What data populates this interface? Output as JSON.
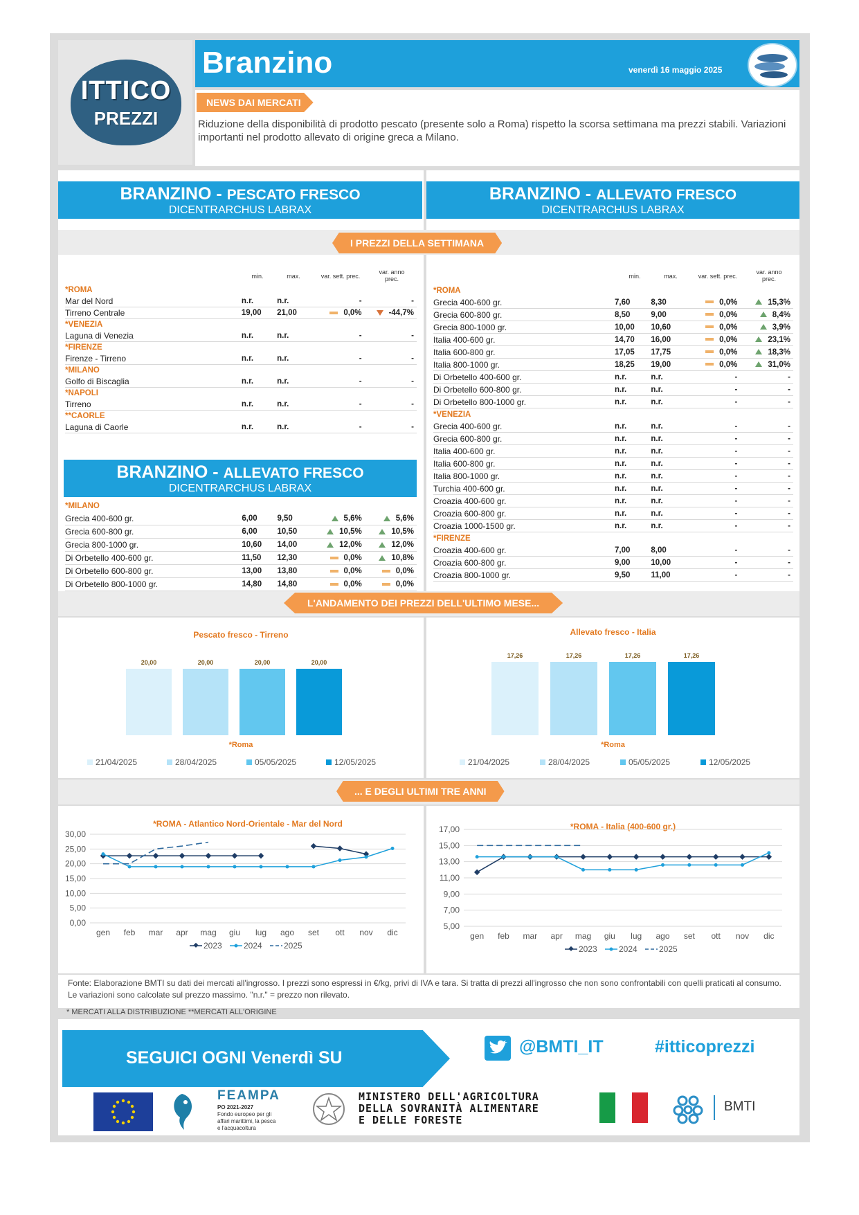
{
  "header": {
    "title": "Branzino",
    "date": "venerdì 16 maggio 2025",
    "logo_line1": "ITTICO",
    "logo_line2": "PREZZI"
  },
  "news": {
    "tag": "NEWS DAI MERCATI",
    "text": "Riduzione della disponibilità di prodotto pescato (presente solo a Roma) rispetto la scorsa settimana ma prezzi stabili. Variazioni importanti nel prodotto allevato di origine greca a Milano."
  },
  "sections": {
    "left_title": "BRANZINO",
    "left_sub": "PESCATO FRESCO",
    "left_latin": "DICENTRARCHUS LABRAX",
    "right_title": "BRANZINO",
    "right_sub": "ALLEVATO FRESCO",
    "right_latin": "DICENTRARCHUS LABRAX",
    "left2_title": "BRANZINO",
    "left2_sub": "ALLEVATO FRESCO",
    "left2_latin": "DICENTRARCHUS LABRAX",
    "prices_tag": "I PREZZI DELLA SETTIMANA",
    "month_tag": "L'ANDAMENTO DEI PREZZI DELL'ULTIMO MESE...",
    "years_tag": "... E DEGLI ULTIMI TRE ANNI"
  },
  "columns": {
    "min": "min.",
    "max": "max.",
    "var_sett": "var. sett. prec.",
    "var_anno_1": "var. anno",
    "var_anno_2": "prec."
  },
  "left_table": [
    {
      "m": "*ROMA"
    },
    {
      "n": "Mar del Nord",
      "min": "n.r.",
      "max": "n.r.",
      "s": "-",
      "a": "-"
    },
    {
      "n": "Tirreno Centrale",
      "min": "19,00",
      "max": "21,00",
      "s": "0,0%",
      "st": "eq",
      "a": "-44,7%",
      "at": "dn"
    },
    {
      "m": "*VENEZIA"
    },
    {
      "n": "Laguna di Venezia",
      "min": "n.r.",
      "max": "n.r.",
      "s": "-",
      "a": "-"
    },
    {
      "m": "*FIRENZE"
    },
    {
      "n": "Firenze - Tirreno",
      "min": "n.r.",
      "max": "n.r.",
      "s": "-",
      "a": "-"
    },
    {
      "m": "*MILANO"
    },
    {
      "n": "Golfo di Biscaglia",
      "min": "n.r.",
      "max": "n.r.",
      "s": "-",
      "a": "-"
    },
    {
      "m": "*NAPOLI"
    },
    {
      "n": "Tirreno",
      "min": "n.r.",
      "max": "n.r.",
      "s": "-",
      "a": "-"
    },
    {
      "m": "**CAORLE"
    },
    {
      "n": "Laguna di Caorle",
      "min": "n.r.",
      "max": "n.r.",
      "s": "-",
      "a": "-"
    }
  ],
  "left2_table": [
    {
      "m": "*MILANO"
    },
    {
      "n": "Grecia 400-600 gr.",
      "min": "6,00",
      "max": "9,50",
      "s": "5,6%",
      "st": "up",
      "a": "5,6%",
      "at": "up"
    },
    {
      "n": "Grecia 600-800 gr.",
      "min": "6,00",
      "max": "10,50",
      "s": "10,5%",
      "st": "up",
      "a": "10,5%",
      "at": "up"
    },
    {
      "n": "Grecia 800-1000 gr.",
      "min": "10,60",
      "max": "14,00",
      "s": "12,0%",
      "st": "up",
      "a": "12,0%",
      "at": "up"
    },
    {
      "n": "Di Orbetello 400-600 gr.",
      "min": "11,50",
      "max": "12,30",
      "s": "0,0%",
      "st": "eq",
      "a": "10,8%",
      "at": "up"
    },
    {
      "n": "Di Orbetello 600-800 gr.",
      "min": "13,00",
      "max": "13,80",
      "s": "0,0%",
      "st": "eq",
      "a": "0,0%",
      "at": "eq"
    },
    {
      "n": "Di Orbetello 800-1000 gr.",
      "min": "14,80",
      "max": "14,80",
      "s": "0,0%",
      "st": "eq",
      "a": "0,0%",
      "at": "eq"
    }
  ],
  "right_table": [
    {
      "m": "*ROMA"
    },
    {
      "n": "Grecia 400-600 gr.",
      "min": "7,60",
      "max": "8,30",
      "s": "0,0%",
      "st": "eq",
      "a": "15,3%",
      "at": "up"
    },
    {
      "n": "Grecia 600-800 gr.",
      "min": "8,50",
      "max": "9,00",
      "s": "0,0%",
      "st": "eq",
      "a": "8,4%",
      "at": "up"
    },
    {
      "n": "Grecia 800-1000 gr.",
      "min": "10,00",
      "max": "10,60",
      "s": "0,0%",
      "st": "eq",
      "a": "3,9%",
      "at": "up"
    },
    {
      "n": "Italia 400-600 gr.",
      "min": "14,70",
      "max": "16,00",
      "s": "0,0%",
      "st": "eq",
      "a": "23,1%",
      "at": "up"
    },
    {
      "n": "Italia 600-800 gr.",
      "min": "17,05",
      "max": "17,75",
      "s": "0,0%",
      "st": "eq",
      "a": "18,3%",
      "at": "up"
    },
    {
      "n": "Italia 800-1000 gr.",
      "min": "18,25",
      "max": "19,00",
      "s": "0,0%",
      "st": "eq",
      "a": "31,0%",
      "at": "up"
    },
    {
      "n": "Di Orbetello 400-600 gr.",
      "min": "n.r.",
      "max": "n.r.",
      "s": "-",
      "a": "-"
    },
    {
      "n": "Di Orbetello 600-800 gr.",
      "min": "n.r.",
      "max": "n.r.",
      "s": "-",
      "a": "-"
    },
    {
      "n": "Di Orbetello 800-1000 gr.",
      "min": "n.r.",
      "max": "n.r.",
      "s": "-",
      "a": "-"
    },
    {
      "m": "*VENEZIA"
    },
    {
      "n": "Grecia 400-600 gr.",
      "min": "n.r.",
      "max": "n.r.",
      "s": "-",
      "a": "-"
    },
    {
      "n": "Grecia 600-800 gr.",
      "min": "n.r.",
      "max": "n.r.",
      "s": "-",
      "a": "-"
    },
    {
      "n": "Italia 400-600 gr.",
      "min": "n.r.",
      "max": "n.r.",
      "s": "-",
      "a": "-"
    },
    {
      "n": "Italia 600-800 gr.",
      "min": "n.r.",
      "max": "n.r.",
      "s": "-",
      "a": "-"
    },
    {
      "n": "Italia 800-1000 gr.",
      "min": "n.r.",
      "max": "n.r.",
      "s": "-",
      "a": "-"
    },
    {
      "n": "Turchia 400-600 gr.",
      "min": "n.r.",
      "max": "n.r.",
      "s": "-",
      "a": "-"
    },
    {
      "n": "Croazia 400-600 gr.",
      "min": "n.r.",
      "max": "n.r.",
      "s": "-",
      "a": "-"
    },
    {
      "n": "Croazia 600-800 gr.",
      "min": "n.r.",
      "max": "n.r.",
      "s": "-",
      "a": "-"
    },
    {
      "n": "Croazia 1000-1500 gr.",
      "min": "n.r.",
      "max": "n.r.",
      "s": "-",
      "a": "-"
    },
    {
      "m": "*FIRENZE"
    },
    {
      "n": "Croazia 400-600 gr.",
      "min": "7,00",
      "max": "8,00",
      "s": "-",
      "a": "-"
    },
    {
      "n": "Croazia 600-800 gr.",
      "min": "9,00",
      "max": "10,00",
      "s": "-",
      "a": "-"
    },
    {
      "n": "Croazia 800-1000 gr.",
      "min": "9,50",
      "max": "11,00",
      "s": "-",
      "a": "-"
    }
  ],
  "chart_data": [
    {
      "type": "bar",
      "title": "Pescato fresco - Tirreno",
      "xlabel": "*Roma",
      "categories": [
        "21/04/2025",
        "28/04/2025",
        "05/05/2025",
        "12/05/2025"
      ],
      "values": [
        20,
        20,
        20,
        20
      ],
      "labels": [
        "20,00",
        "20,00",
        "20,00",
        "20,00"
      ],
      "colors": [
        "#dbf1fb",
        "#b5e3f8",
        "#62c7ef",
        "#099ad9"
      ],
      "legend": "bottom"
    },
    {
      "type": "bar",
      "title": "Allevato fresco - Italia",
      "xlabel": "*Roma",
      "categories": [
        "21/04/2025",
        "28/04/2025",
        "05/05/2025",
        "12/05/2025"
      ],
      "values": [
        17.26,
        17.26,
        17.26,
        17.26
      ],
      "labels": [
        "17,26",
        "17,26",
        "17,26",
        "17,26"
      ],
      "colors": [
        "#dbf1fb",
        "#b5e3f8",
        "#62c7ef",
        "#099ad9"
      ],
      "legend": "bottom"
    },
    {
      "type": "line",
      "title": "*ROMA - Atlantico Nord-Orientale - Mar del Nord",
      "x": [
        "gen",
        "feb",
        "mar",
        "apr",
        "mag",
        "giu",
        "lug",
        "ago",
        "set",
        "ott",
        "nov",
        "dic"
      ],
      "ylim": [
        0,
        30
      ],
      "yticks": [
        "0,00",
        "5,00",
        "10,00",
        "15,00",
        "20,00",
        "25,00",
        "30,00"
      ],
      "series": [
        {
          "name": "2023",
          "values": [
            22.7,
            22.7,
            22.7,
            22.7,
            22.7,
            22.7,
            22.7,
            null,
            26,
            25.2,
            23.3,
            null
          ],
          "color": "#1f3d66"
        },
        {
          "name": "2024",
          "values": [
            23.3,
            19,
            19,
            19,
            19,
            19,
            19,
            19,
            19,
            21.2,
            22.3,
            25.2
          ],
          "color": "#1ea0db"
        },
        {
          "name": "2025",
          "values": [
            20,
            20,
            25,
            26,
            27.3,
            null,
            null,
            null,
            null,
            null,
            null,
            null
          ],
          "color": "#2f6a9e"
        }
      ]
    },
    {
      "type": "line",
      "title": "*ROMA - Italia (400-600 gr.)",
      "x": [
        "gen",
        "feb",
        "mar",
        "apr",
        "mag",
        "giu",
        "lug",
        "ago",
        "set",
        "ott",
        "nov",
        "dic"
      ],
      "ylim": [
        5,
        17
      ],
      "yticks": [
        "5,00",
        "7,00",
        "9,00",
        "11,00",
        "13,00",
        "15,00",
        "17,00"
      ],
      "series": [
        {
          "name": "2023",
          "values": [
            11.7,
            13.6,
            13.6,
            13.6,
            13.6,
            13.6,
            13.6,
            13.6,
            13.6,
            13.6,
            13.6,
            13.6
          ],
          "color": "#1f3d66"
        },
        {
          "name": "2024",
          "values": [
            13.6,
            13.6,
            13.6,
            13.6,
            12,
            12,
            12,
            12.6,
            12.6,
            12.6,
            12.6,
            14.1
          ],
          "color": "#1ea0db"
        },
        {
          "name": "2025",
          "values": [
            15,
            15,
            15,
            15,
            15,
            null,
            null,
            null,
            null,
            null,
            null,
            null
          ],
          "color": "#2f6a9e"
        }
      ]
    }
  ],
  "footer": {
    "source": "Fonte: Elaborazione BMTI su dati dei mercati all'ingrosso. I prezzi sono espressi in €/kg, privi di IVA e tara. Si tratta di prezzi all'ingrosso che non sono confrontabili con quelli praticati al consumo. Le variazioni sono calcolate sul prezzo massimo. \"n.r.\" = prezzo non rilevato.",
    "legend_note": "* MERCATI ALLA DISTRIBUZIONE **MERCATI ALL'ORIGINE",
    "follow": "SEGUICI OGNI Venerdì SU",
    "twitter": "@BMTI_IT",
    "hashtag": "#itticoprezzi",
    "feampa": "FEAMPA",
    "feampa_sub1": "PO 2021-2027",
    "feampa_sub2": "Fondo europeo per gli",
    "feampa_sub3": "affari marittimi, la pesca",
    "feampa_sub4": "e l'acquacoltura",
    "ministry1": "MINISTERO DELL'AGRICOLTURA",
    "ministry2": "DELLA SOVRANITÀ ALIMENTARE",
    "ministry3": "E DELLE FORESTE",
    "bmti": "BMTI"
  },
  "colors": {
    "accent": "#1ea0db",
    "orange": "#f49a4b",
    "label_orange": "#e37a21"
  }
}
